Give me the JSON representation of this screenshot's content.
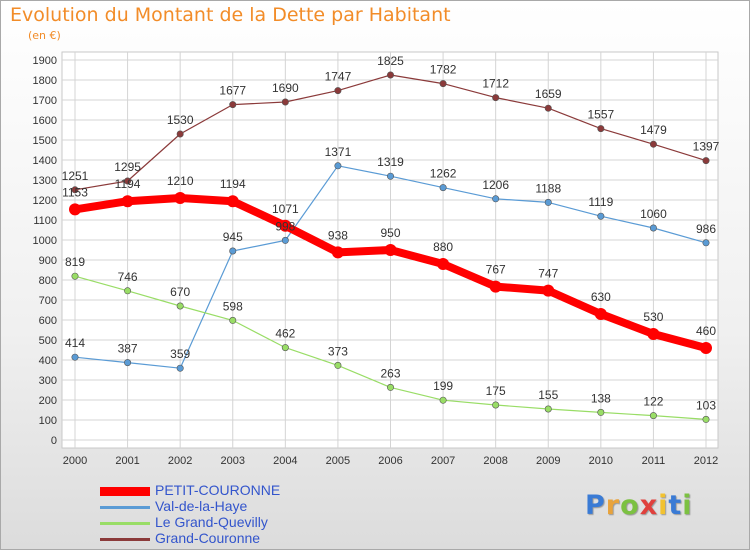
{
  "header": {
    "title": "Evolution du Montant de la Dette par Habitant",
    "unit": "(en €)"
  },
  "chart_data": {
    "type": "line",
    "x": [
      "2000",
      "2001",
      "2002",
      "2003",
      "2004",
      "2005",
      "2006",
      "2007",
      "2008",
      "2009",
      "2010",
      "2011",
      "2012"
    ],
    "yticks": [
      "0",
      "100",
      "200",
      "300",
      "400",
      "500",
      "600",
      "700",
      "800",
      "900",
      "1000",
      "1100",
      "1200",
      "1300",
      "1400",
      "1500",
      "1600",
      "1700",
      "1800",
      "1900"
    ],
    "ylim": [
      0,
      1900
    ],
    "grid": true,
    "legend_position": "bottom-left",
    "series": [
      {
        "name": "PETIT-COURONNE",
        "color": "#ff0000",
        "values": [
          1153,
          1194,
          1210,
          1194,
          1071,
          938,
          950,
          880,
          767,
          747,
          630,
          530,
          460
        ]
      },
      {
        "name": "Val-de-la-Haye",
        "color": "#5a9bd5",
        "values": [
          414,
          387,
          359,
          945,
          998,
          1371,
          1319,
          1262,
          1206,
          1188,
          1119,
          1060,
          986
        ]
      },
      {
        "name": "Le Grand-Quevilly",
        "color": "#99dd66",
        "values": [
          819,
          746,
          670,
          598,
          462,
          373,
          263,
          199,
          175,
          155,
          138,
          122,
          103
        ]
      },
      {
        "name": "Grand-Couronne",
        "color": "#8b3a3a",
        "values": [
          1251,
          1295,
          1530,
          1677,
          1690,
          1747,
          1825,
          1782,
          1712,
          1659,
          1557,
          1479,
          1397
        ]
      }
    ]
  },
  "logo": {
    "letters": [
      "P",
      "r",
      "o",
      "x",
      "i",
      "t",
      "i"
    ],
    "colors": [
      "#3a7bd5",
      "#e8a33d",
      "#7cc142",
      "#e0403c",
      "#f2c230",
      "#3a7bd5",
      "#7cc142"
    ]
  }
}
